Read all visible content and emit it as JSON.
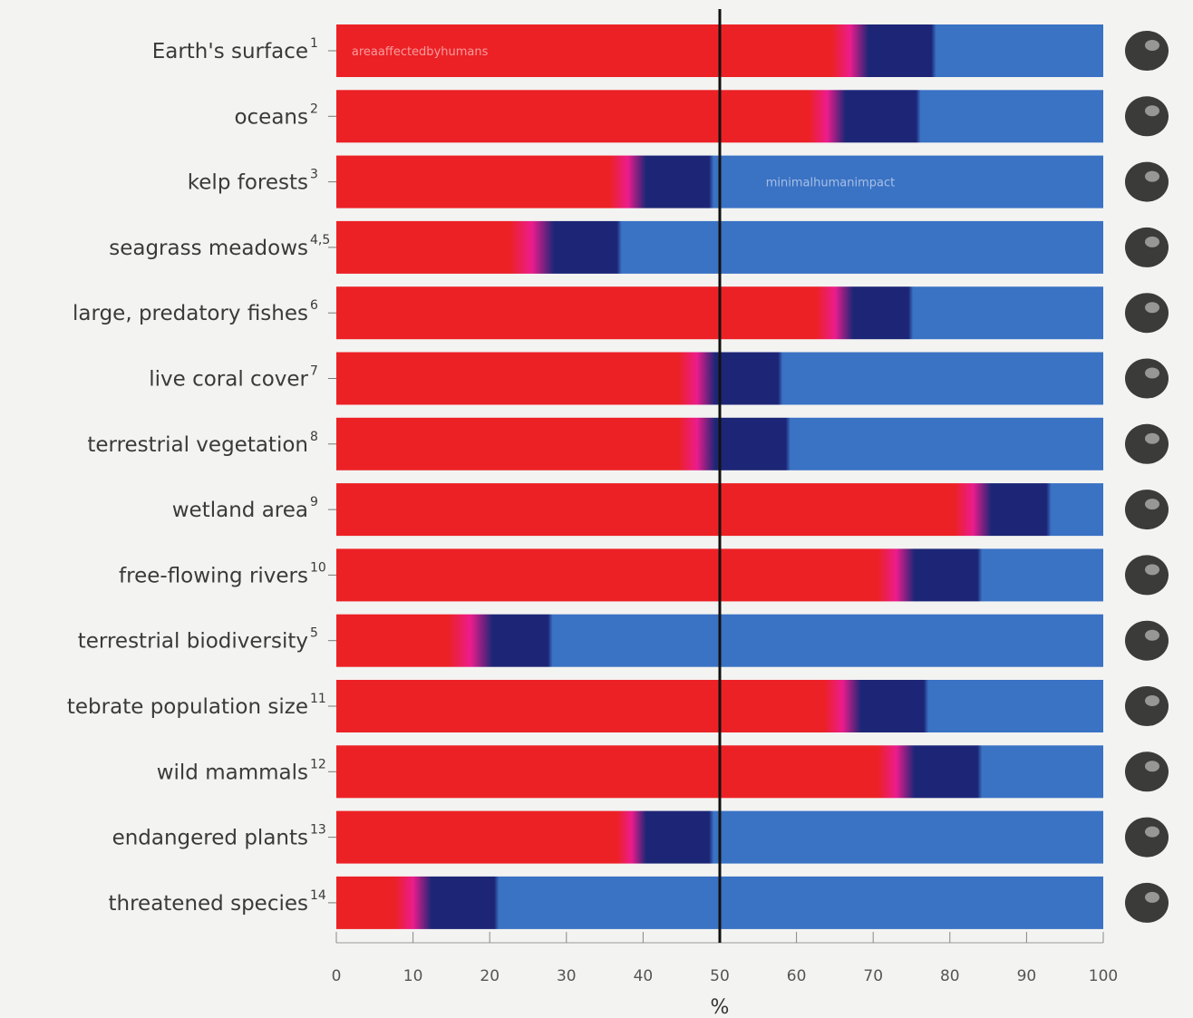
{
  "chart_data": {
    "type": "bar",
    "orientation": "horizontal",
    "stacked": true,
    "xlabel": "%",
    "xlim": [
      0,
      100
    ],
    "x_ticks": [
      "0",
      "10",
      "20",
      "30",
      "40",
      "50",
      "60",
      "70",
      "80",
      "90",
      "100"
    ],
    "reference_line_x": 50,
    "grid": false,
    "bar_overlay_labels": [
      "areaaffectedbyhumans",
      "minimalhumanimpact"
    ],
    "categories": [
      {
        "label": "Earth's surface",
        "note": "1",
        "icon": "earth-icon",
        "red": 65,
        "magenta": 4,
        "dark": 9,
        "blue": 22
      },
      {
        "label": "oceans",
        "note": "2",
        "icon": "ocean-wave-icon",
        "red": 62,
        "magenta": 4,
        "dark": 10,
        "blue": 24
      },
      {
        "label": "kelp forests",
        "note": "3",
        "icon": "kelp-icon",
        "red": 36,
        "magenta": 4,
        "dark": 9,
        "blue": 51
      },
      {
        "label": "seagrass meadows",
        "note": "4,5",
        "icon": "seagrass-icon",
        "red": 23,
        "magenta": 5,
        "dark": 9,
        "blue": 63
      },
      {
        "label": "large, predatory fishes",
        "note": "6",
        "icon": "swordfish-icon",
        "red": 63,
        "magenta": 4,
        "dark": 8,
        "blue": 25
      },
      {
        "label": "live coral cover",
        "note": "7",
        "icon": "coral-icon",
        "red": 45,
        "magenta": 4,
        "dark": 9,
        "blue": 42
      },
      {
        "label": "terrestrial vegetation",
        "note": "8",
        "icon": "tree-icon",
        "red": 45,
        "magenta": 4,
        "dark": 10,
        "blue": 41
      },
      {
        "label": "wetland area",
        "note": "9",
        "icon": "wetland-icon",
        "red": 81,
        "magenta": 4,
        "dark": 8,
        "blue": 7
      },
      {
        "label": "free-flowing rivers",
        "note": "10",
        "icon": "river-icon",
        "red": 71,
        "magenta": 4,
        "dark": 9,
        "blue": 16
      },
      {
        "label": "terrestrial biodiversity",
        "note": "5",
        "icon": "biodiversity-icon",
        "red": 15,
        "magenta": 5,
        "dark": 8,
        "blue": 72
      },
      {
        "label": "tebrate population size",
        "note": "11",
        "icon": "snake-icon",
        "red": 64,
        "magenta": 4,
        "dark": 9,
        "blue": 23
      },
      {
        "label": "wild mammals",
        "note": "12",
        "icon": "rhino-icon",
        "red": 71,
        "magenta": 4,
        "dark": 9,
        "blue": 16
      },
      {
        "label": "endangered plants",
        "note": "13",
        "icon": "flower-icon",
        "red": 37,
        "magenta": 3,
        "dark": 9,
        "blue": 51
      },
      {
        "label": "threatened species",
        "note": "14",
        "icon": "butterfly-icon",
        "red": 8,
        "magenta": 4,
        "dark": 9,
        "blue": 79
      }
    ],
    "colors": {
      "red": "#ec2125",
      "magenta": "#ec1c8c",
      "dark": "#1d2676",
      "blue": "#3a72c4",
      "reference_line": "#111111"
    }
  }
}
